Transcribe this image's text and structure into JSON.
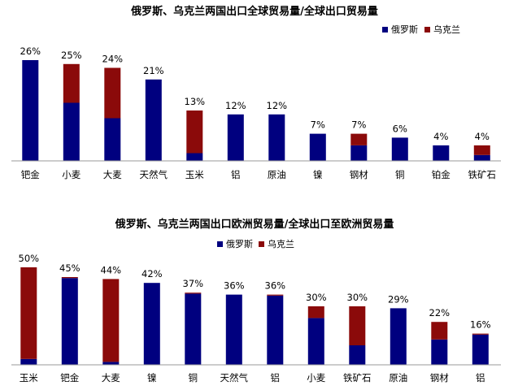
{
  "colors": {
    "russia": "#00007F",
    "ukraine": "#8B0A0A",
    "axis": "#9A9A9A"
  },
  "chart_data": [
    {
      "type": "bar",
      "stacked": true,
      "title": "俄罗斯、乌克兰两国出口全球贸易量/全球出口贸易量",
      "legend_position": "top-right",
      "categories": [
        "钯金",
        "小麦",
        "大麦",
        "天然气",
        "玉米",
        "铝",
        "原油",
        "镍",
        "钢材",
        "铜",
        "铂金",
        "铁矿石"
      ],
      "totals_labels": [
        "26%",
        "25%",
        "24%",
        "21%",
        "13%",
        "12%",
        "12%",
        "7%",
        "7%",
        "6%",
        "4%",
        "4%"
      ],
      "series": [
        {
          "name": "俄罗斯",
          "values": [
            26,
            15,
            11,
            21,
            2,
            12,
            12,
            7,
            4,
            6,
            4,
            1.5
          ]
        },
        {
          "name": "乌克兰",
          "values": [
            0,
            10,
            13,
            0,
            11,
            0,
            0,
            0,
            3,
            0,
            0,
            2.5
          ]
        }
      ],
      "ylim": [
        0,
        26
      ]
    },
    {
      "type": "bar",
      "stacked": true,
      "title": "俄罗斯、乌克兰两国出口欧洲贸易量/全球出口至欧洲贸易量",
      "legend_position": "top-right",
      "categories": [
        "玉米",
        "钯金",
        "大麦",
        "镍",
        "铜",
        "天然气",
        "铝",
        "小麦",
        "铁矿石",
        "原油",
        "钢材",
        "铝"
      ],
      "totals_labels": [
        "50%",
        "45%",
        "44%",
        "42%",
        "37%",
        "36%",
        "36%",
        "30%",
        "30%",
        "29%",
        "22%",
        "16%"
      ],
      "series": [
        {
          "name": "俄罗斯",
          "values": [
            3,
            44.5,
            1.5,
            42,
            36.5,
            36,
            35.5,
            24,
            10,
            29,
            13,
            15.5
          ]
        },
        {
          "name": "乌克兰",
          "values": [
            47,
            0.5,
            42.5,
            0,
            0.5,
            0,
            0.5,
            6,
            20,
            0,
            9,
            0.5
          ]
        }
      ],
      "ylim": [
        0,
        50
      ]
    }
  ]
}
